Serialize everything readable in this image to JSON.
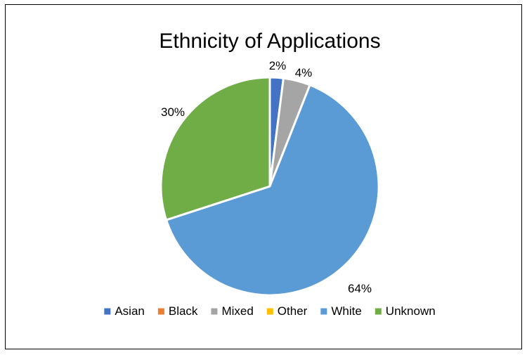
{
  "chart_data": {
    "type": "pie",
    "title": "Ethnicity of Applications",
    "categories": [
      "Asian",
      "Black",
      "Mixed",
      "Other",
      "White",
      "Unknown"
    ],
    "values": [
      2,
      0,
      4,
      0,
      64,
      30
    ],
    "data_labels": [
      "2%",
      "",
      "4%",
      "",
      "64%",
      "30%"
    ],
    "colors": [
      "#4472C4",
      "#ED7D31",
      "#A5A5A5",
      "#FFC000",
      "#5B9BD5",
      "#70AD47"
    ],
    "legend_position": "bottom"
  }
}
